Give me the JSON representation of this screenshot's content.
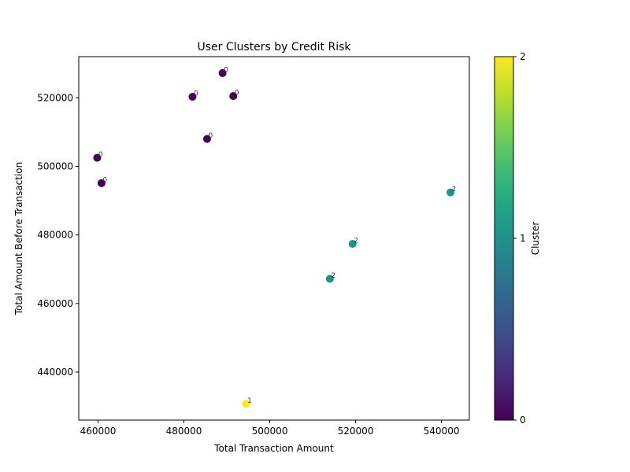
{
  "chart_data": {
    "type": "scatter",
    "title": "User Clusters by Credit Risk",
    "xlabel": "Total Transaction Amount",
    "ylabel": "Total Amount Before Transaction",
    "xlim": [
      455500,
      546500
    ],
    "ylim": [
      426000,
      532000
    ],
    "xticks": [
      460000,
      480000,
      500000,
      520000,
      540000
    ],
    "yticks": [
      440000,
      460000,
      480000,
      500000,
      520000
    ],
    "grid": false,
    "points": [
      {
        "x": 489000,
        "y": 527200,
        "cluster": 0,
        "label": "0"
      },
      {
        "x": 482000,
        "y": 520300,
        "cluster": 0,
        "label": "0"
      },
      {
        "x": 491500,
        "y": 520500,
        "cluster": 0,
        "label": "0"
      },
      {
        "x": 485400,
        "y": 508000,
        "cluster": 0,
        "label": "0"
      },
      {
        "x": 459800,
        "y": 502500,
        "cluster": 0,
        "label": "0"
      },
      {
        "x": 460800,
        "y": 495100,
        "cluster": 0,
        "label": "0"
      },
      {
        "x": 542100,
        "y": 492400,
        "cluster": 1,
        "label": "2"
      },
      {
        "x": 519300,
        "y": 477400,
        "cluster": 1,
        "label": "2"
      },
      {
        "x": 514000,
        "y": 467200,
        "cluster": 1,
        "label": "2"
      },
      {
        "x": 494500,
        "y": 430700,
        "cluster": 2,
        "label": "1"
      }
    ],
    "cluster_colors": {
      "0": "#440154",
      "1": "#21918c",
      "2": "#fde725"
    },
    "colorbar": {
      "label": "Cluster",
      "range": [
        0,
        2
      ],
      "ticks": [
        0,
        1,
        2
      ],
      "colormap": "viridis"
    }
  }
}
